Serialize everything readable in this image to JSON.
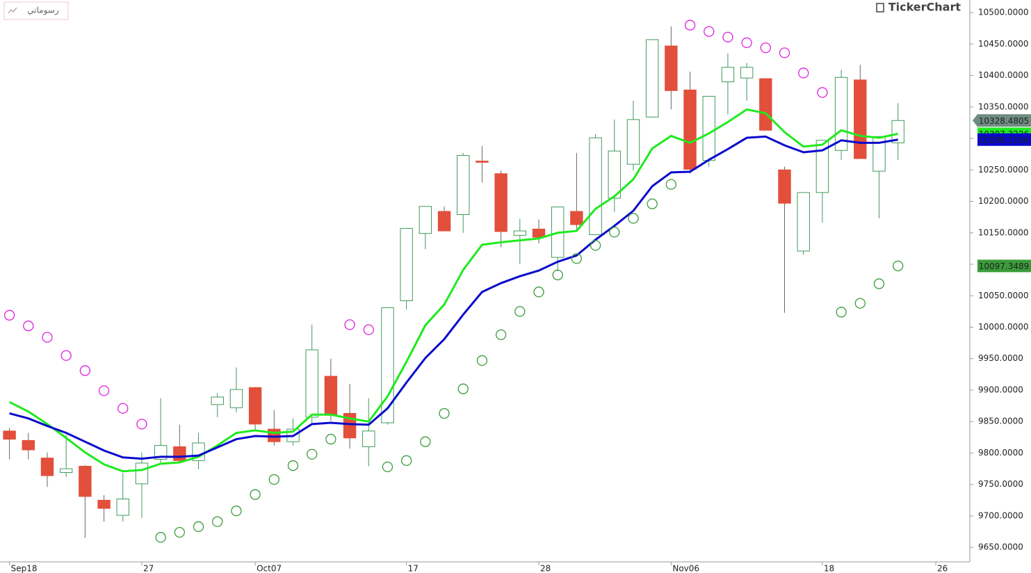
{
  "tab_label": "رسوماتي",
  "brand": "TickerChart",
  "chart_data": {
    "type": "candlestick",
    "x": [
      0,
      1,
      2,
      3,
      4,
      5,
      6,
      7,
      8,
      9,
      10,
      11,
      12,
      13,
      14,
      15,
      16,
      17,
      18,
      19,
      20,
      21,
      22,
      23,
      24,
      25,
      26,
      27,
      28,
      29,
      30,
      31,
      32,
      33,
      34,
      35,
      36,
      37,
      38,
      39,
      40,
      41,
      42,
      43,
      44,
      45,
      46,
      47
    ],
    "open": [
      9835,
      9820,
      9792,
      9769,
      9779,
      9725,
      9701,
      9751,
      9790,
      9810,
      9788,
      9877,
      9872,
      9904,
      9838,
      9818,
      9857,
      9922,
      9863,
      9810,
      9848,
      10042,
      10149,
      10184,
      10179,
      10264,
      10244,
      10146,
      10156,
      10111,
      10184,
      10147,
      10205,
      10259,
      10334,
      10447,
      10377,
      10265,
      10390,
      10396,
      10395,
      10250,
      10121,
      10214,
      10281,
      10393,
      10248,
      10293
    ],
    "high": [
      9840,
      9832,
      9801,
      9829,
      9781,
      9733,
      9768,
      9801,
      9887,
      9845,
      9832,
      9895,
      9936,
      9905,
      9868,
      9855,
      10004,
      9950,
      9910,
      9887,
      10031,
      10157,
      10192,
      10192,
      10277,
      10288,
      10249,
      10172,
      10171,
      10191,
      10277,
      10307,
      10330,
      10360,
      10457,
      10478,
      10406,
      10367,
      10435,
      10420,
      10395,
      10255,
      10214,
      10297,
      10409,
      10417,
      10303,
      10356
    ],
    "low": [
      9790,
      9790,
      9746,
      9762,
      9665,
      9691,
      9691,
      9697,
      9785,
      9785,
      9774,
      9857,
      9865,
      9835,
      9812,
      9812,
      9848,
      9851,
      9807,
      9779,
      9845,
      10028,
      10124,
      10153,
      10150,
      10230,
      10127,
      10100,
      10133,
      10089,
      10155,
      10147,
      10183,
      10249,
      10334,
      10346,
      10244,
      10255,
      10338,
      10360,
      10313,
      10023,
      10115,
      10166,
      10266,
      10268,
      10173,
      10266
    ],
    "close": [
      9822,
      9805,
      9764,
      9775,
      9731,
      9712,
      9727,
      9784,
      9812,
      9788,
      9816,
      9889,
      9901,
      9846,
      9818,
      9838,
      9964,
      9860,
      9824,
      9835,
      10031,
      10157,
      10192,
      10153,
      10273,
      10262,
      10152,
      10153,
      10143,
      10191,
      10163,
      10301,
      10280,
      10330,
      10457,
      10376,
      10251,
      10367,
      10413,
      10413,
      10313,
      10197,
      10214,
      10297,
      10397,
      10268,
      10303,
      10328.4805
    ],
    "up_color": "#3f9a5c",
    "down_color": "#e24f3b",
    "last_color": "#6f8c82",
    "series": [
      {
        "style": "line",
        "color": "#1eea1e",
        "values": [
          9881,
          9866,
          9846,
          9824,
          9801,
          9782,
          9771,
          9773,
          9783,
          9785,
          9794,
          9812,
          9832,
          9836,
          9832,
          9834,
          9861,
          9861,
          9855,
          9850,
          9890,
          9945,
          10003,
          10036,
          10091,
          10131,
          10135,
          10138,
          10141,
          10150,
          10153,
          10188,
          10208,
          10235,
          10284,
          10304,
          10293,
          10308,
          10326,
          10346,
          10340,
          10310,
          10287,
          10290,
          10313,
          10304,
          10301,
          10307.3226
        ]
      },
      {
        "style": "line",
        "color": "#0a0acc",
        "values": [
          9863,
          9855,
          9843,
          9832,
          9818,
          9804,
          9793,
          9791,
          9794,
          9794,
          9796,
          9809,
          9822,
          9827,
          9826,
          9827,
          9846,
          9848,
          9846,
          9845,
          9871,
          9912,
          9951,
          9981,
          10020,
          10056,
          10070,
          10081,
          10090,
          10104,
          10114,
          10139,
          10161,
          10185,
          10224,
          10246,
          10247,
          10266,
          10283,
          10301,
          10303,
          10289,
          10278,
          10281,
          10297,
          10293,
          10293,
          10298.1166
        ]
      },
      {
        "style": "circle",
        "color": "#e020e0",
        "values": [
          10019,
          10002,
          9984,
          9955,
          9931,
          9899,
          9871,
          9846,
          null,
          null,
          null,
          null,
          null,
          null,
          null,
          null,
          null,
          null,
          10004,
          9996,
          null,
          null,
          null,
          null,
          null,
          null,
          null,
          null,
          null,
          null,
          null,
          null,
          null,
          null,
          null,
          null,
          10480,
          10470,
          10461,
          10452,
          10444,
          10436,
          10404,
          10373,
          null,
          null,
          null,
          null
        ]
      },
      {
        "style": "circle",
        "color": "#3a9c3a",
        "values": [
          null,
          null,
          null,
          null,
          null,
          null,
          null,
          null,
          9666,
          9674,
          9683,
          9691,
          9708,
          9734,
          9758,
          9780,
          9798,
          9822,
          null,
          null,
          9778,
          9788,
          9818,
          9863,
          9902,
          9947,
          9988,
          10025,
          10056,
          10083,
          10109,
          10130,
          10151,
          10173,
          10196,
          10227,
          null,
          null,
          null,
          null,
          null,
          null,
          null,
          null,
          10024,
          10038,
          10069,
          10097.3489
        ]
      }
    ],
    "xlim": [
      -0.5,
      50.8
    ],
    "xticks": [
      {
        "value": 0,
        "label": "Sep18"
      },
      {
        "value": 7,
        "label": "27"
      },
      {
        "value": 13,
        "label": "Oct07"
      },
      {
        "value": 21,
        "label": "17"
      },
      {
        "value": 28,
        "label": "28"
      },
      {
        "value": 35,
        "label": "Nov06"
      },
      {
        "value": 43,
        "label": "18"
      },
      {
        "value": 49,
        "label": "26"
      }
    ],
    "ylim": [
      9627,
      10520
    ],
    "yticks": [
      {
        "value": 9650,
        "label": "9650.0000"
      },
      {
        "value": 9700,
        "label": "9700.0000"
      },
      {
        "value": 9750,
        "label": "9750.0000"
      },
      {
        "value": 9800,
        "label": "9800.0000"
      },
      {
        "value": 9850,
        "label": "9850.0000"
      },
      {
        "value": 9900,
        "label": "9900.0000"
      },
      {
        "value": 9950,
        "label": "9950.0000"
      },
      {
        "value": 10000,
        "label": "10000.0000"
      },
      {
        "value": 10050,
        "label": "10050.0000"
      },
      {
        "value": 10100,
        "label": "10100.0000"
      },
      {
        "value": 10150,
        "label": "10150.0000"
      },
      {
        "value": 10200,
        "label": "10200.0000"
      },
      {
        "value": 10250,
        "label": "10250.0000"
      },
      {
        "value": 10300,
        "label": "10300.0000"
      },
      {
        "value": 10350,
        "label": "10350.0000"
      },
      {
        "value": 10400,
        "label": "10400.0000"
      },
      {
        "value": 10450,
        "label": "10450.0000"
      },
      {
        "value": 10500,
        "label": "10500.0000"
      }
    ]
  }
}
